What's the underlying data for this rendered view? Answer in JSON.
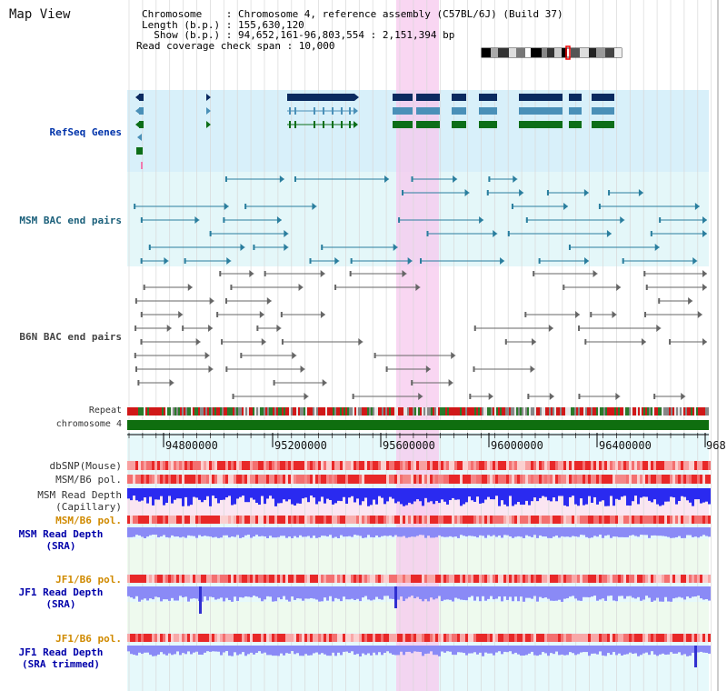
{
  "header": {
    "title": "Map View",
    "chromosome_line": "Chromosome    : Chromosome 4, reference assembly (C57BL/6J) (Build 37)",
    "length_line": "Length (b.p.) : 155,630,120",
    "show_line": "  Show (b.p.) : 94,652,161-96,803,554 : 2,151,394 bp",
    "coverage_line": "Read coverage check span : 10,000"
  },
  "tracks": {
    "refseq": "RefSeq Genes",
    "msm_bac": "MSM BAC end pairs",
    "b6n_bac": "B6N BAC end pairs",
    "repeat": "Repeat",
    "chromosome": "chromosome 4",
    "dbsnp": "dbSNP(Mouse)",
    "msm_b6_pol": "MSM/B6 pol.",
    "msm_depth_cap_1": "MSM Read Depth",
    "msm_depth_cap_2": "(Capillary)",
    "msm_b6_pol_2": "MSM/B6 pol.",
    "msm_depth_sra_1": "MSM Read Depth",
    "msm_depth_sra_2": "(SRA)",
    "jf1_b6_pol": "JF1/B6 pol.",
    "jf1_depth_sra_1": "JF1 Read Depth",
    "jf1_depth_sra_2": "(SRA)",
    "jf1_b6_pol_2": "JF1/B6 pol.",
    "jf1_depth_trim_1": "JF1 Read Depth",
    "jf1_depth_trim_2": "(SRA trimmed)"
  },
  "ruler": {
    "ticks": [
      "94800000",
      "95200000",
      "95600000",
      "96000000",
      "96400000",
      "968"
    ]
  },
  "colors": {
    "refseq_bg": "#d8f0fa",
    "msm_bg": "#e4f7f9",
    "highlight": "#f7c8ee",
    "chromosome": "#0f6e0f",
    "gene_dark": "#0b2a60",
    "gene_mid": "#4a90b8",
    "gene_green": "#0c6e18",
    "depth_blue": "#2a2af0",
    "depth_light": "#8a8af6"
  }
}
